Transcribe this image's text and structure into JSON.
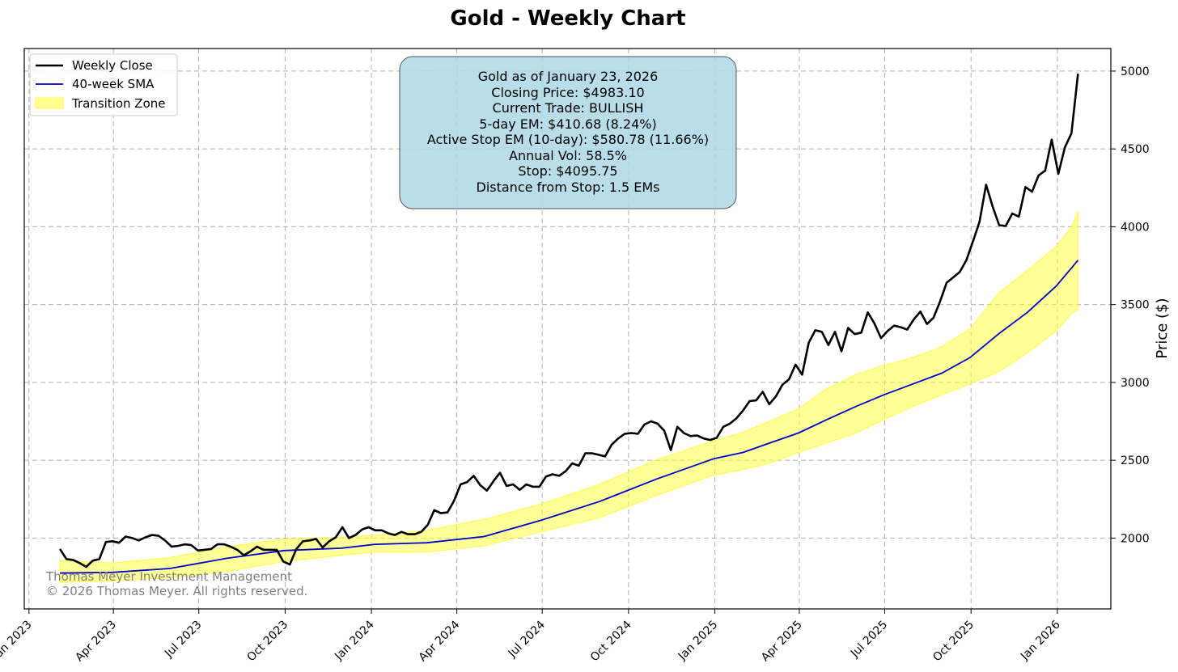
{
  "chart_data": {
    "type": "line",
    "title": "Gold - Weekly Chart",
    "xlabel": "",
    "ylabel": "Price ($)",
    "x_ticks": [
      "2023-01-01",
      "2023-04-01",
      "2023-07-01",
      "2023-10-01",
      "2024-01-01",
      "2024-04-01",
      "2024-07-01",
      "2024-10-01",
      "2025-01-01",
      "2025-04-01",
      "2025-07-01",
      "2025-10-01",
      "2026-01-01"
    ],
    "x_tick_labels": [
      "Jan 2023",
      "Apr 2023",
      "Jul 2023",
      "Oct 2023",
      "Jan 2024",
      "Apr 2024",
      "Jul 2024",
      "Oct 2024",
      "Jan 2025",
      "Apr 2025",
      "Jul 2025",
      "Oct 2025",
      "Jan 2026"
    ],
    "xlim": [
      "2022-12-27",
      "2026-02-27"
    ],
    "y_ticks": [
      2000,
      2500,
      3000,
      3500,
      4000,
      4500,
      5000
    ],
    "ylim": [
      1545,
      5145
    ],
    "grid": true,
    "legend_position": "top-left",
    "colors": {
      "close": "#000000",
      "sma": "#0000cc",
      "zone": "#ffff44"
    },
    "series": [
      {
        "name": "Weekly Close",
        "style": "line",
        "color": "#000000",
        "points": [
          [
            "2023-02-03",
            1930
          ],
          [
            "2023-02-10",
            1865
          ],
          [
            "2023-02-17",
            1860
          ],
          [
            "2023-02-24",
            1840
          ],
          [
            "2023-03-03",
            1815
          ],
          [
            "2023-03-10",
            1855
          ],
          [
            "2023-03-17",
            1865
          ],
          [
            "2023-03-24",
            1975
          ],
          [
            "2023-03-31",
            1980
          ],
          [
            "2023-04-07",
            1970
          ],
          [
            "2023-04-14",
            2010
          ],
          [
            "2023-04-21",
            2000
          ],
          [
            "2023-04-28",
            1985
          ],
          [
            "2023-05-05",
            2005
          ],
          [
            "2023-05-12",
            2020
          ],
          [
            "2023-05-19",
            2015
          ],
          [
            "2023-05-26",
            1985
          ],
          [
            "2023-06-02",
            1945
          ],
          [
            "2023-06-09",
            1950
          ],
          [
            "2023-06-16",
            1960
          ],
          [
            "2023-06-23",
            1955
          ],
          [
            "2023-06-30",
            1920
          ],
          [
            "2023-07-07",
            1925
          ],
          [
            "2023-07-14",
            1930
          ],
          [
            "2023-07-21",
            1960
          ],
          [
            "2023-07-28",
            1960
          ],
          [
            "2023-08-04",
            1945
          ],
          [
            "2023-08-11",
            1925
          ],
          [
            "2023-08-18",
            1890
          ],
          [
            "2023-08-25",
            1915
          ],
          [
            "2023-09-01",
            1945
          ],
          [
            "2023-09-08",
            1925
          ],
          [
            "2023-09-15",
            1925
          ],
          [
            "2023-09-22",
            1925
          ],
          [
            "2023-09-29",
            1850
          ],
          [
            "2023-10-06",
            1830
          ],
          [
            "2023-10-13",
            1930
          ],
          [
            "2023-10-20",
            1980
          ],
          [
            "2023-10-27",
            1985
          ],
          [
            "2023-11-03",
            1995
          ],
          [
            "2023-11-10",
            1940
          ],
          [
            "2023-11-17",
            1980
          ],
          [
            "2023-11-24",
            2005
          ],
          [
            "2023-12-01",
            2070
          ],
          [
            "2023-12-08",
            2000
          ],
          [
            "2023-12-15",
            2020
          ],
          [
            "2023-12-22",
            2055
          ],
          [
            "2023-12-29",
            2070
          ],
          [
            "2024-01-05",
            2050
          ],
          [
            "2024-01-12",
            2050
          ],
          [
            "2024-01-19",
            2030
          ],
          [
            "2024-01-26",
            2020
          ],
          [
            "2024-02-02",
            2040
          ],
          [
            "2024-02-09",
            2025
          ],
          [
            "2024-02-16",
            2025
          ],
          [
            "2024-02-23",
            2040
          ],
          [
            "2024-03-01",
            2085
          ],
          [
            "2024-03-08",
            2180
          ],
          [
            "2024-03-15",
            2160
          ],
          [
            "2024-03-22",
            2165
          ],
          [
            "2024-03-29",
            2240
          ],
          [
            "2024-04-05",
            2345
          ],
          [
            "2024-04-12",
            2360
          ],
          [
            "2024-04-19",
            2400
          ],
          [
            "2024-04-26",
            2340
          ],
          [
            "2024-05-03",
            2305
          ],
          [
            "2024-05-10",
            2365
          ],
          [
            "2024-05-17",
            2420
          ],
          [
            "2024-05-24",
            2335
          ],
          [
            "2024-05-31",
            2345
          ],
          [
            "2024-06-07",
            2310
          ],
          [
            "2024-06-14",
            2345
          ],
          [
            "2024-06-21",
            2330
          ],
          [
            "2024-06-28",
            2330
          ],
          [
            "2024-07-05",
            2395
          ],
          [
            "2024-07-12",
            2410
          ],
          [
            "2024-07-19",
            2400
          ],
          [
            "2024-07-26",
            2430
          ],
          [
            "2024-08-02",
            2480
          ],
          [
            "2024-08-09",
            2465
          ],
          [
            "2024-08-16",
            2545
          ],
          [
            "2024-08-23",
            2545
          ],
          [
            "2024-08-30",
            2535
          ],
          [
            "2024-09-06",
            2525
          ],
          [
            "2024-09-13",
            2600
          ],
          [
            "2024-09-20",
            2640
          ],
          [
            "2024-09-27",
            2670
          ],
          [
            "2024-10-04",
            2675
          ],
          [
            "2024-10-11",
            2670
          ],
          [
            "2024-10-18",
            2730
          ],
          [
            "2024-10-25",
            2750
          ],
          [
            "2024-11-01",
            2735
          ],
          [
            "2024-11-08",
            2690
          ],
          [
            "2024-11-15",
            2565
          ],
          [
            "2024-11-22",
            2715
          ],
          [
            "2024-11-29",
            2675
          ],
          [
            "2024-12-06",
            2655
          ],
          [
            "2024-12-13",
            2660
          ],
          [
            "2024-12-20",
            2640
          ],
          [
            "2024-12-27",
            2630
          ],
          [
            "2025-01-03",
            2645
          ],
          [
            "2025-01-10",
            2715
          ],
          [
            "2025-01-17",
            2735
          ],
          [
            "2025-01-24",
            2770
          ],
          [
            "2025-01-31",
            2820
          ],
          [
            "2025-02-07",
            2880
          ],
          [
            "2025-02-14",
            2885
          ],
          [
            "2025-02-21",
            2940
          ],
          [
            "2025-02-28",
            2860
          ],
          [
            "2025-03-07",
            2910
          ],
          [
            "2025-03-14",
            2985
          ],
          [
            "2025-03-21",
            3020
          ],
          [
            "2025-03-28",
            3115
          ],
          [
            "2025-04-04",
            3050
          ],
          [
            "2025-04-11",
            3255
          ],
          [
            "2025-04-18",
            3335
          ],
          [
            "2025-04-25",
            3325
          ],
          [
            "2025-05-02",
            3240
          ],
          [
            "2025-05-09",
            3325
          ],
          [
            "2025-05-16",
            3200
          ],
          [
            "2025-05-23",
            3350
          ],
          [
            "2025-05-30",
            3310
          ],
          [
            "2025-06-06",
            3320
          ],
          [
            "2025-06-13",
            3450
          ],
          [
            "2025-06-20",
            3380
          ],
          [
            "2025-06-27",
            3285
          ],
          [
            "2025-07-04",
            3330
          ],
          [
            "2025-07-11",
            3365
          ],
          [
            "2025-07-18",
            3355
          ],
          [
            "2025-07-25",
            3340
          ],
          [
            "2025-08-01",
            3405
          ],
          [
            "2025-08-08",
            3455
          ],
          [
            "2025-08-15",
            3375
          ],
          [
            "2025-08-22",
            3415
          ],
          [
            "2025-08-29",
            3520
          ],
          [
            "2025-09-05",
            3640
          ],
          [
            "2025-09-12",
            3675
          ],
          [
            "2025-09-19",
            3710
          ],
          [
            "2025-09-26",
            3785
          ],
          [
            "2025-10-03",
            3905
          ],
          [
            "2025-10-10",
            4030
          ],
          [
            "2025-10-17",
            4270
          ],
          [
            "2025-10-24",
            4130
          ],
          [
            "2025-10-31",
            4010
          ],
          [
            "2025-11-07",
            4005
          ],
          [
            "2025-11-14",
            4085
          ],
          [
            "2025-11-21",
            4065
          ],
          [
            "2025-11-28",
            4255
          ],
          [
            "2025-12-05",
            4225
          ],
          [
            "2025-12-12",
            4330
          ],
          [
            "2025-12-19",
            4360
          ],
          [
            "2025-12-26",
            4560
          ],
          [
            "2026-01-02",
            4340
          ],
          [
            "2026-01-09",
            4510
          ],
          [
            "2026-01-16",
            4600
          ],
          [
            "2026-01-23",
            4983.1
          ]
        ]
      },
      {
        "name": "40-week SMA",
        "style": "line",
        "color": "#0000cc",
        "points": [
          [
            "2023-02-03",
            1775
          ],
          [
            "2023-03-31",
            1780
          ],
          [
            "2023-05-31",
            1805
          ],
          [
            "2023-07-31",
            1870
          ],
          [
            "2023-09-30",
            1920
          ],
          [
            "2023-11-30",
            1935
          ],
          [
            "2024-01-05",
            1960
          ],
          [
            "2024-02-29",
            1970
          ],
          [
            "2024-04-30",
            2010
          ],
          [
            "2024-06-30",
            2115
          ],
          [
            "2024-08-31",
            2235
          ],
          [
            "2024-10-31",
            2380
          ],
          [
            "2024-12-31",
            2510
          ],
          [
            "2025-01-31",
            2550
          ],
          [
            "2025-02-28",
            2610
          ],
          [
            "2025-03-31",
            2675
          ],
          [
            "2025-04-30",
            2760
          ],
          [
            "2025-05-31",
            2845
          ],
          [
            "2025-06-30",
            2920
          ],
          [
            "2025-07-31",
            2990
          ],
          [
            "2025-08-31",
            3060
          ],
          [
            "2025-09-30",
            3160
          ],
          [
            "2025-10-31",
            3315
          ],
          [
            "2025-11-30",
            3450
          ],
          [
            "2025-12-31",
            3620
          ],
          [
            "2026-01-23",
            3785
          ]
        ]
      },
      {
        "name": "Transition Zone",
        "style": "band",
        "color": "#ffff44",
        "upper": [
          [
            "2023-02-03",
            1855
          ],
          [
            "2023-03-31",
            1840
          ],
          [
            "2023-05-31",
            1875
          ],
          [
            "2023-07-31",
            1945
          ],
          [
            "2023-09-30",
            1995
          ],
          [
            "2023-11-30",
            2005
          ],
          [
            "2024-01-05",
            2020
          ],
          [
            "2024-02-29",
            2050
          ],
          [
            "2024-04-30",
            2120
          ],
          [
            "2024-06-30",
            2220
          ],
          [
            "2024-08-31",
            2345
          ],
          [
            "2024-10-31",
            2505
          ],
          [
            "2024-12-31",
            2625
          ],
          [
            "2025-01-31",
            2680
          ],
          [
            "2025-02-28",
            2750
          ],
          [
            "2025-03-31",
            2830
          ],
          [
            "2025-04-30",
            2960
          ],
          [
            "2025-05-31",
            3050
          ],
          [
            "2025-06-30",
            3110
          ],
          [
            "2025-07-31",
            3160
          ],
          [
            "2025-08-31",
            3230
          ],
          [
            "2025-09-30",
            3345
          ],
          [
            "2025-10-31",
            3580
          ],
          [
            "2025-11-30",
            3720
          ],
          [
            "2025-12-31",
            3875
          ],
          [
            "2026-01-16",
            4000
          ],
          [
            "2026-01-23",
            4100
          ]
        ],
        "lower": [
          [
            "2023-02-03",
            1715
          ],
          [
            "2023-03-31",
            1725
          ],
          [
            "2023-05-31",
            1745
          ],
          [
            "2023-07-31",
            1785
          ],
          [
            "2023-09-30",
            1850
          ],
          [
            "2023-11-30",
            1890
          ],
          [
            "2024-01-05",
            1910
          ],
          [
            "2024-02-29",
            1910
          ],
          [
            "2024-04-30",
            1950
          ],
          [
            "2024-06-30",
            2040
          ],
          [
            "2024-08-31",
            2130
          ],
          [
            "2024-10-31",
            2275
          ],
          [
            "2024-12-31",
            2405
          ],
          [
            "2025-01-31",
            2440
          ],
          [
            "2025-02-28",
            2480
          ],
          [
            "2025-03-31",
            2550
          ],
          [
            "2025-04-30",
            2610
          ],
          [
            "2025-05-31",
            2675
          ],
          [
            "2025-06-30",
            2760
          ],
          [
            "2025-07-31",
            2845
          ],
          [
            "2025-08-31",
            2920
          ],
          [
            "2025-09-30",
            2990
          ],
          [
            "2025-10-31",
            3070
          ],
          [
            "2025-11-30",
            3190
          ],
          [
            "2025-12-31",
            3330
          ],
          [
            "2026-01-16",
            3440
          ],
          [
            "2026-01-23",
            3470
          ]
        ]
      }
    ],
    "legend": [
      "Weekly Close",
      "40-week SMA",
      "Transition Zone"
    ],
    "annotation_lines": [
      "Gold as of January 23, 2026",
      "Closing Price: $4983.10",
      "Current Trade: BULLISH",
      "5-day EM: $410.68 (8.24%)",
      "Active Stop EM (10-day): $580.78 (11.66%)",
      "Annual Vol: 58.5%",
      "Stop: $4095.75",
      "Distance from Stop: 1.5 EMs"
    ],
    "annotation_box_color": "#add8e6",
    "watermark_lines": [
      "Thomas Meyer Investment Management",
      "© 2026 Thomas Meyer. All rights reserved."
    ]
  }
}
